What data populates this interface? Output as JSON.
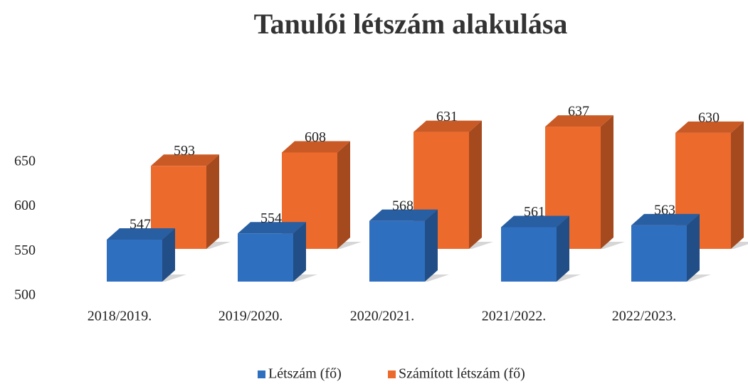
{
  "chart_data": {
    "type": "bar3d",
    "title": "Tanulói létszám alakulása",
    "categories": [
      "2018/2019.",
      "2019/2020.",
      "2020/2021.",
      "2021/2022.",
      "2022/2023."
    ],
    "series": [
      {
        "name": "Létszám (fő)",
        "color": "#2f6fbf",
        "values": [
          547,
          554,
          568,
          561,
          563
        ]
      },
      {
        "name": "Számított létszám (fő)",
        "color": "#ec6a2c",
        "values": [
          593,
          608,
          631,
          637,
          630
        ]
      }
    ],
    "ylim": [
      500,
      700
    ],
    "yticks": [
      500,
      550,
      600,
      650
    ],
    "legend": "bottom"
  }
}
